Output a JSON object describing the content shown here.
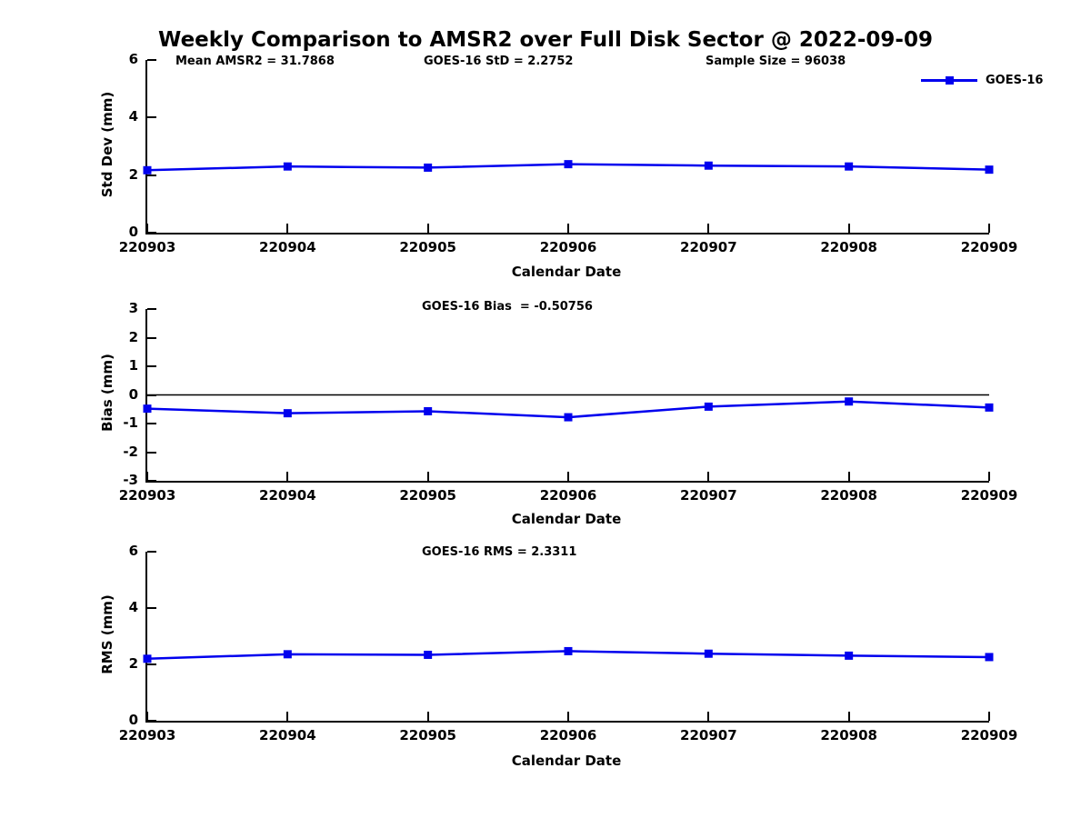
{
  "title": "Weekly Comparison to AMSR2 over Full Disk Sector @ 2022-09-09",
  "annotations": {
    "mean_amsr2": "Mean AMSR2 = 31.7868",
    "goes_std": "GOES-16 StD = 2.2752",
    "sample_size": "Sample Size = 96038",
    "goes_bias": "GOES-16 Bias  = -0.50756",
    "goes_rms": "GOES-16 RMS = 2.3311"
  },
  "legend": {
    "label": "GOES-16",
    "marker": "square",
    "position": "top-right"
  },
  "colors": {
    "series": "#0000EE",
    "axis": "#000000",
    "background": "#FFFFFF"
  },
  "chart_data": [
    {
      "type": "line",
      "name": "std-dev",
      "categories": [
        "220903",
        "220904",
        "220905",
        "220906",
        "220907",
        "220908",
        "220909"
      ],
      "series": [
        {
          "name": "GOES-16",
          "color": "#0000EE",
          "marker": "square",
          "values": [
            2.17,
            2.3,
            2.26,
            2.38,
            2.33,
            2.3,
            2.19
          ]
        }
      ],
      "xlabel": "Calendar Date",
      "ylabel": "Std Dev (mm)",
      "ylim": [
        0,
        6
      ],
      "yticks": [
        0,
        2,
        4,
        6
      ],
      "grid": false,
      "zero_line": false,
      "annotation": "GOES-16 StD = 2.2752"
    },
    {
      "type": "line",
      "name": "bias",
      "categories": [
        "220903",
        "220904",
        "220905",
        "220906",
        "220907",
        "220908",
        "220909"
      ],
      "series": [
        {
          "name": "GOES-16",
          "color": "#0000EE",
          "marker": "square",
          "values": [
            -0.48,
            -0.64,
            -0.57,
            -0.78,
            -0.41,
            -0.23,
            -0.44
          ]
        }
      ],
      "xlabel": "Calendar Date",
      "ylabel": "Bias (mm)",
      "ylim": [
        -3,
        3
      ],
      "yticks": [
        -3,
        -2,
        -1,
        0,
        1,
        2,
        3
      ],
      "grid": false,
      "zero_line": true,
      "annotation": "GOES-16 Bias  = -0.50756"
    },
    {
      "type": "line",
      "name": "rms",
      "categories": [
        "220903",
        "220904",
        "220905",
        "220906",
        "220907",
        "220908",
        "220909"
      ],
      "series": [
        {
          "name": "GOES-16",
          "color": "#0000EE",
          "marker": "square",
          "values": [
            2.2,
            2.36,
            2.34,
            2.47,
            2.38,
            2.31,
            2.26
          ]
        }
      ],
      "xlabel": "Calendar Date",
      "ylabel": "RMS (mm)",
      "ylim": [
        0,
        6
      ],
      "yticks": [
        0,
        2,
        4,
        6
      ],
      "grid": false,
      "zero_line": false,
      "annotation": "GOES-16 RMS = 2.3311"
    }
  ]
}
